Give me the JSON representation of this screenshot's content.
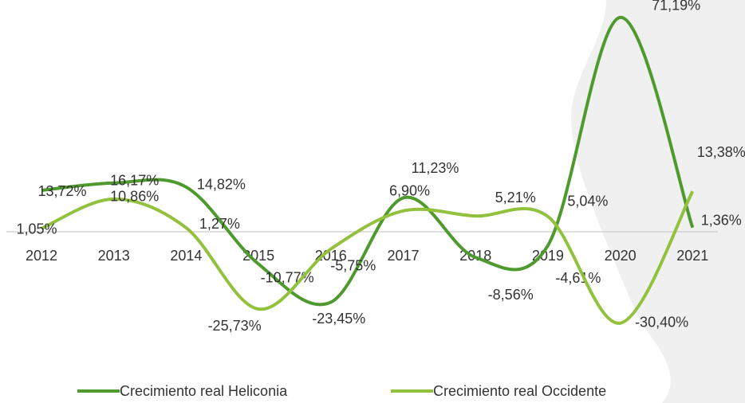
{
  "chart_data": {
    "type": "line",
    "categories": [
      "2012",
      "2013",
      "2014",
      "2015",
      "2016",
      "2017",
      "2018",
      "2019",
      "2020",
      "2021"
    ],
    "series": [
      {
        "name": "Crecimiento real Heliconia",
        "color": "#4e9a2e",
        "values": [
          13.72,
          16.17,
          14.82,
          -10.77,
          -23.45,
          11.23,
          -8.56,
          -4.61,
          71.19,
          1.36
        ],
        "value_labels": [
          "13,72%",
          "16,17%",
          "14,82%",
          "-10,77%",
          "-23,45%",
          "11,23%",
          "-8,56%",
          "-4,61%",
          "71,19%",
          "1,36%"
        ]
      },
      {
        "name": "Crecimiento real Occidente",
        "color": "#92c13e",
        "values": [
          1.05,
          10.86,
          1.27,
          -25.73,
          -5.75,
          6.9,
          5.21,
          5.04,
          -30.4,
          13.38
        ],
        "value_labels": [
          "1,05%",
          "10,86%",
          "1,27%",
          "-25,73%",
          "-5,75%",
          "6,90%",
          "5,21%",
          "5,04%",
          "-30,40%",
          "13,38%"
        ]
      }
    ],
    "ylim": [
      -40,
      75
    ],
    "legend": "bottom"
  }
}
